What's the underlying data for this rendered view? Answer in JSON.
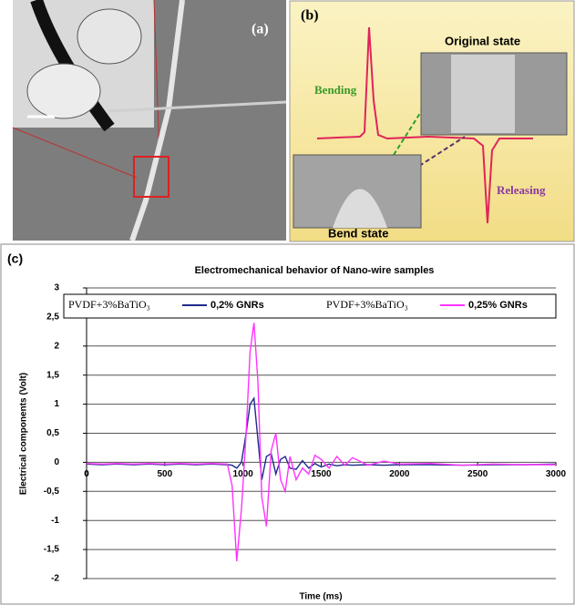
{
  "panel_a": {
    "label": "(a)"
  },
  "panel_b": {
    "label": "(b)",
    "annotations": [
      "Original state",
      "Bending",
      "Releasing",
      "Bend state"
    ]
  },
  "chart_data": {
    "type": "line",
    "panel_label": "(c)",
    "title": "Electromechanical  behavior of Nano-wire samples",
    "x_label": "Time (ms)",
    "y_label": "Electrical components (Volt)",
    "x": [
      0,
      100,
      200,
      300,
      400,
      500,
      600,
      700,
      800,
      900,
      930,
      960,
      990,
      1020,
      1045,
      1070,
      1095,
      1120,
      1150,
      1180,
      1210,
      1240,
      1270,
      1300,
      1340,
      1380,
      1420,
      1460,
      1500,
      1550,
      1600,
      1650,
      1700,
      1800,
      1900,
      2000,
      2200,
      2400,
      2600,
      2800,
      3000
    ],
    "series": [
      {
        "name": "0,2% GNRs",
        "label_prefix": "PVDF+3%BaTiO₃",
        "color": "#1f2a8c",
        "values": [
          -0.03,
          -0.04,
          -0.03,
          -0.04,
          -0.03,
          -0.04,
          -0.03,
          -0.04,
          -0.03,
          -0.04,
          -0.05,
          -0.1,
          0.0,
          0.5,
          1.0,
          1.1,
          0.4,
          -0.3,
          0.1,
          0.15,
          -0.2,
          0.05,
          0.1,
          -0.1,
          -0.12,
          0.03,
          -0.1,
          -0.02,
          -0.08,
          -0.03,
          -0.06,
          -0.04,
          -0.05,
          -0.04,
          -0.05,
          -0.04,
          -0.04,
          -0.05,
          -0.04,
          -0.04,
          -0.03
        ]
      },
      {
        "name": "0,25% GNRs",
        "label_prefix": "PVDF+3%BaTiO₃",
        "color": "#ff33ff",
        "values": [
          -0.02,
          -0.03,
          -0.02,
          -0.03,
          -0.02,
          -0.03,
          -0.02,
          -0.03,
          -0.02,
          -0.03,
          -0.4,
          -1.7,
          -0.8,
          0.5,
          1.9,
          2.4,
          1.4,
          -0.6,
          -1.1,
          0.2,
          0.5,
          -0.3,
          -0.5,
          0.1,
          -0.3,
          -0.1,
          -0.2,
          0.12,
          0.05,
          -0.1,
          0.1,
          -0.05,
          0.08,
          -0.05,
          0.02,
          -0.03,
          -0.02,
          -0.05,
          -0.03,
          -0.04,
          -0.04
        ]
      }
    ],
    "xlim": [
      0,
      3000
    ],
    "xticks": [
      0,
      500,
      1000,
      1500,
      2000,
      2500,
      3000
    ],
    "ylim": [
      -2,
      3
    ],
    "yticks": [
      3,
      {
        "value": 2.5,
        "label": "2,5"
      },
      2,
      {
        "value": 1.5,
        "label": "1,5"
      },
      1,
      {
        "value": 0.5,
        "label": "0,5"
      },
      0,
      {
        "value": -0.5,
        "label": "-0,5"
      },
      -1,
      {
        "value": -1.5,
        "label": "-1,5"
      },
      -2
    ],
    "grid": true
  }
}
